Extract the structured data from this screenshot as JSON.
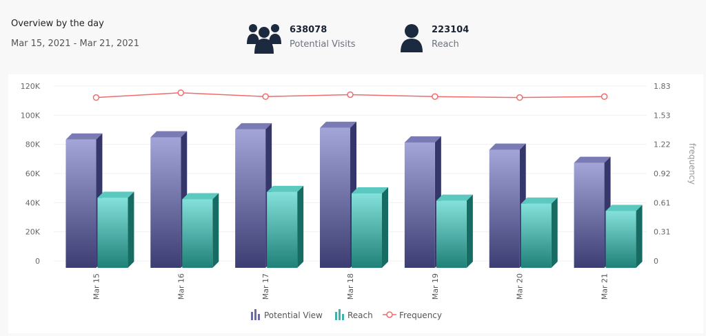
{
  "header": {
    "title": "Overview by the day",
    "date_range": "Mar 15, 2021 - Mar 21, 2021"
  },
  "stats": [
    {
      "value": "638078",
      "label": "Potential Visits",
      "icon": "group-icon"
    },
    {
      "value": "223104",
      "label": "Reach",
      "icon": "user-icon"
    }
  ],
  "chart_data": {
    "type": "bar",
    "categories": [
      "Mar 15",
      "Mar 16",
      "Mar 17",
      "Mar 18",
      "Mar 19",
      "Mar 20",
      "Mar 21"
    ],
    "series": [
      {
        "name": "Potential View",
        "type": "bar",
        "color": "#6b6ba8",
        "values": [
          88000,
          89500,
          95000,
          96000,
          86000,
          81000,
          72000
        ]
      },
      {
        "name": "Reach",
        "type": "bar",
        "color": "#3fb3a8",
        "values": [
          48000,
          47000,
          52000,
          51000,
          46000,
          44000,
          39000
        ]
      },
      {
        "name": "Frequency",
        "type": "line",
        "color": "#f06a6a",
        "axis": "right",
        "values": [
          1.71,
          1.76,
          1.72,
          1.74,
          1.72,
          1.71,
          1.72
        ]
      }
    ],
    "y_ticks": [
      "0",
      "20K",
      "40K",
      "60K",
      "80K",
      "100K",
      "120K"
    ],
    "ylim": [
      0,
      120000
    ],
    "y2_ticks": [
      "0",
      "0.31",
      "0.61",
      "0.92",
      "1.22",
      "1.53",
      "1.83"
    ],
    "y2lim": [
      0,
      1.83
    ],
    "y2label": "frequency",
    "legend_position": "bottom"
  }
}
